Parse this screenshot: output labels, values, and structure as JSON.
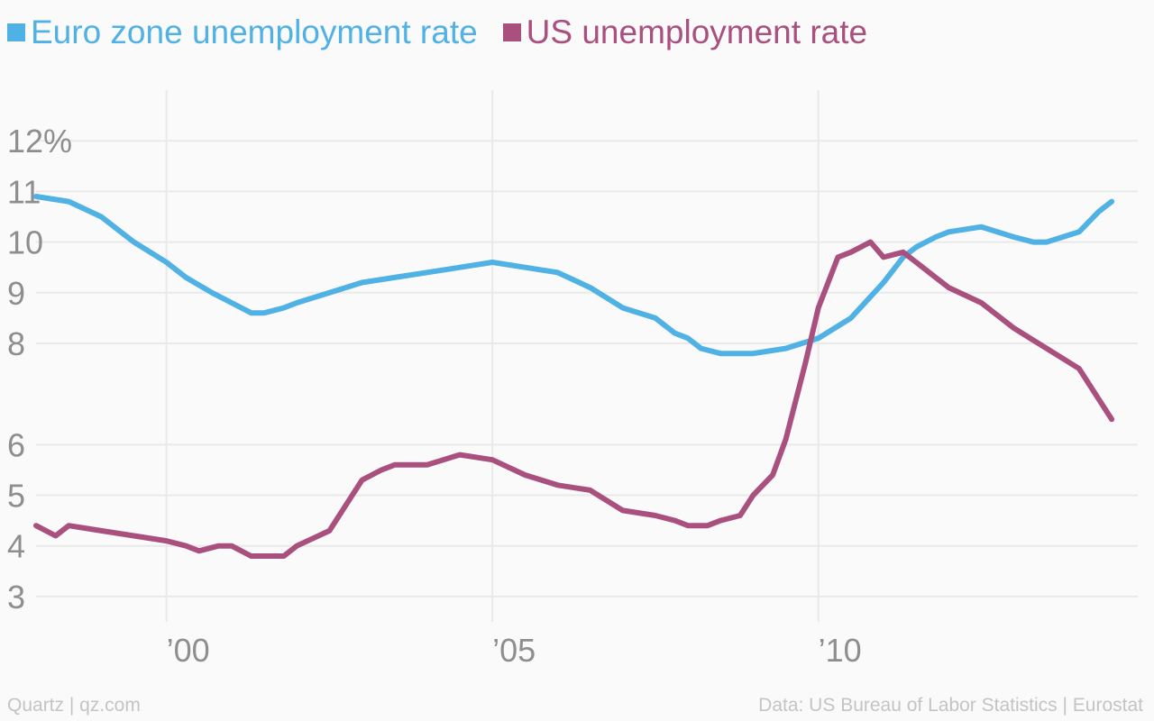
{
  "colors": {
    "euro": "#4fb1e4",
    "us": "#a9507f",
    "grid": "#e9e9e9",
    "ticks": "#8e8e8e",
    "footer": "#c4c4c4"
  },
  "footer": {
    "source_left": "Quartz | qz.com",
    "source_right": "Data: US Bureau of Labor Statistics | Eurostat"
  },
  "chart_data": {
    "type": "line",
    "title": "",
    "xlabel": "",
    "ylabel": "",
    "xlim": [
      1998.0,
      2014.9
    ],
    "ylim": [
      2.5,
      13.0
    ],
    "x_ticks": [
      {
        "value": 2000,
        "label": "’00"
      },
      {
        "value": 2005,
        "label": "’05"
      },
      {
        "value": 2010,
        "label": "’10"
      }
    ],
    "y_ticks": [
      {
        "value": 3,
        "label": "3"
      },
      {
        "value": 4,
        "label": "4"
      },
      {
        "value": 5,
        "label": "5"
      },
      {
        "value": 6,
        "label": "6"
      },
      {
        "value": 8,
        "label": "8"
      },
      {
        "value": 9,
        "label": "9"
      },
      {
        "value": 10,
        "label": "10"
      },
      {
        "value": 11,
        "label": "11"
      },
      {
        "value": 12,
        "label": "12%"
      }
    ],
    "grid": true,
    "legend": "top-left",
    "series": [
      {
        "name": "Euro zone unemployment rate",
        "color": "#4fb1e4",
        "x": [
          1998.0,
          1998.5,
          1999.0,
          1999.5,
          2000.0,
          2000.3,
          2000.7,
          2001.0,
          2001.3,
          2001.5,
          2001.8,
          2002.0,
          2002.5,
          2003.0,
          2003.5,
          2004.0,
          2004.5,
          2005.0,
          2005.5,
          2006.0,
          2006.5,
          2007.0,
          2007.5,
          2007.8,
          2008.0,
          2008.2,
          2008.5,
          2008.8,
          2009.0,
          2009.5,
          2010.0,
          2010.5,
          2011.0,
          2011.3,
          2011.5,
          2011.8,
          2012.0,
          2012.5,
          2013.0,
          2013.3,
          2013.5,
          2014.0,
          2014.3,
          2014.5
        ],
        "values": [
          10.9,
          10.8,
          10.5,
          10.0,
          9.6,
          9.3,
          9.0,
          8.8,
          8.6,
          8.6,
          8.7,
          8.8,
          9.0,
          9.2,
          9.3,
          9.4,
          9.5,
          9.6,
          9.5,
          9.4,
          9.1,
          8.7,
          8.5,
          8.2,
          8.1,
          7.9,
          7.8,
          7.8,
          7.8,
          7.9,
          8.1,
          8.5,
          9.2,
          9.7,
          9.9,
          10.1,
          10.2,
          10.3,
          10.1,
          10.0,
          10.0,
          10.2,
          10.6,
          10.8
        ]
      },
      {
        "name": "US unemployment rate",
        "color": "#a9507f",
        "x": [
          1998.0,
          1998.3,
          1998.5,
          1999.0,
          1999.5,
          2000.0,
          2000.3,
          2000.5,
          2000.8,
          2001.0,
          2001.3,
          2001.5,
          2001.8,
          2002.0,
          2002.5,
          2003.0,
          2003.3,
          2003.5,
          2004.0,
          2004.5,
          2005.0,
          2005.5,
          2006.0,
          2006.5,
          2007.0,
          2007.5,
          2007.8,
          2008.0,
          2008.3,
          2008.5,
          2008.8,
          2009.0,
          2009.3,
          2009.5,
          2009.8,
          2010.0,
          2010.3,
          2010.5,
          2010.8,
          2011.0,
          2011.3,
          2011.5,
          2011.8,
          2012.0,
          2012.5,
          2013.0,
          2013.5,
          2014.0,
          2014.3,
          2014.5
        ],
        "values": [
          4.4,
          4.2,
          4.4,
          4.3,
          4.2,
          4.1,
          4.0,
          3.9,
          4.0,
          4.0,
          3.8,
          3.8,
          3.8,
          4.0,
          4.3,
          5.3,
          5.5,
          5.6,
          5.6,
          5.8,
          5.7,
          5.4,
          5.2,
          5.1,
          4.7,
          4.6,
          4.5,
          4.4,
          4.4,
          4.5,
          4.6,
          5.0,
          5.4,
          6.1,
          7.6,
          8.7,
          9.7,
          9.8,
          10.0,
          9.7,
          9.8,
          9.6,
          9.3,
          9.1,
          8.8,
          8.3,
          7.9,
          7.5,
          6.9,
          6.5
        ]
      }
    ]
  }
}
